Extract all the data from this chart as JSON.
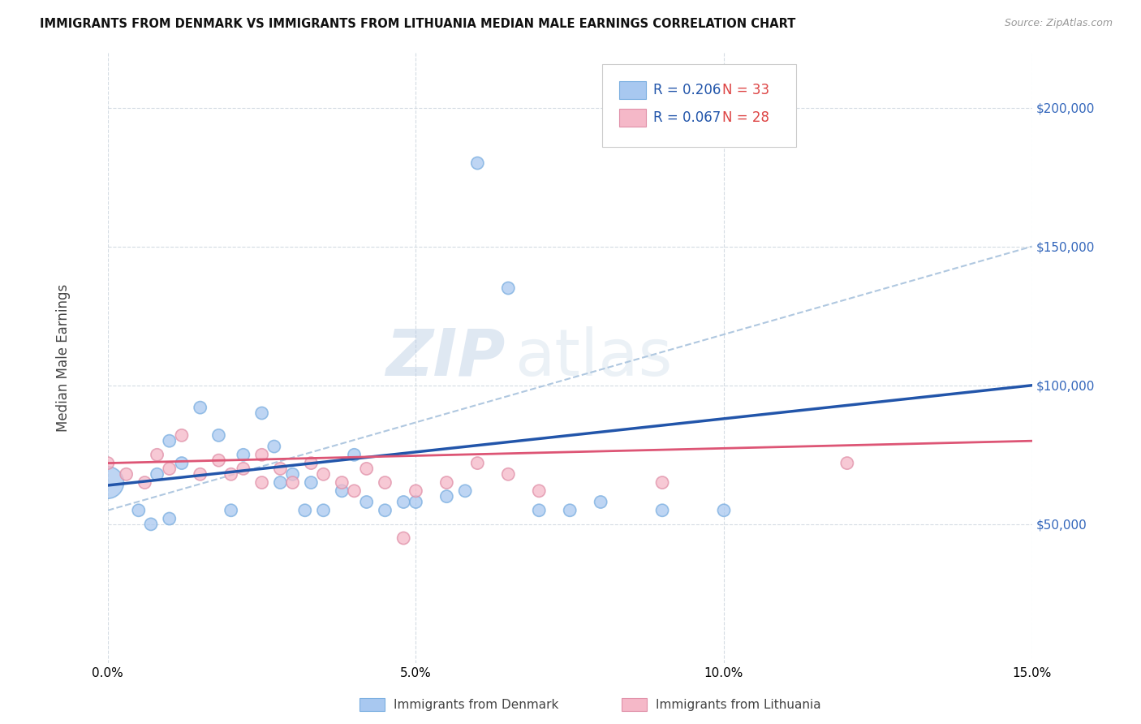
{
  "title": "IMMIGRANTS FROM DENMARK VS IMMIGRANTS FROM LITHUANIA MEDIAN MALE EARNINGS CORRELATION CHART",
  "source": "Source: ZipAtlas.com",
  "ylabel": "Median Male Earnings",
  "xlim": [
    0.0,
    0.15
  ],
  "ylim": [
    0,
    220000
  ],
  "yticks": [
    50000,
    100000,
    150000,
    200000
  ],
  "ytick_labels": [
    "$50,000",
    "$100,000",
    "$150,000",
    "$200,000"
  ],
  "xticks": [
    0.0,
    0.05,
    0.1,
    0.15
  ],
  "xtick_labels": [
    "0.0%",
    "",
    "",
    "15.0%"
  ],
  "r_denmark": 0.206,
  "n_denmark": 33,
  "r_lithuania": 0.067,
  "n_lithuania": 28,
  "denmark_color": "#a8c8f0",
  "denmark_edge_color": "#7aaee0",
  "lithuania_color": "#f5b8c8",
  "lithuania_edge_color": "#e090a8",
  "denmark_line_color": "#2255aa",
  "lithuania_line_color": "#e0607080",
  "dashed_line_color": "#b0c8e0",
  "denmark_x": [
    0.0,
    0.005,
    0.007,
    0.008,
    0.01,
    0.01,
    0.012,
    0.015,
    0.018,
    0.02,
    0.022,
    0.025,
    0.027,
    0.028,
    0.03,
    0.032,
    0.033,
    0.035,
    0.038,
    0.04,
    0.042,
    0.045,
    0.048,
    0.05,
    0.055,
    0.058,
    0.06,
    0.065,
    0.07,
    0.075,
    0.08,
    0.09,
    0.1
  ],
  "denmark_y": [
    65000,
    55000,
    50000,
    68000,
    52000,
    80000,
    72000,
    92000,
    82000,
    55000,
    75000,
    90000,
    78000,
    65000,
    68000,
    55000,
    65000,
    55000,
    62000,
    75000,
    58000,
    55000,
    58000,
    58000,
    60000,
    62000,
    180000,
    135000,
    55000,
    55000,
    58000,
    55000,
    55000
  ],
  "denmark_size_raw": [
    800,
    120,
    120,
    120,
    120,
    120,
    120,
    120,
    120,
    120,
    120,
    120,
    120,
    120,
    120,
    120,
    120,
    120,
    120,
    120,
    120,
    120,
    120,
    120,
    120,
    120,
    120,
    120,
    120,
    120,
    120,
    120,
    120
  ],
  "lithuania_x": [
    0.0,
    0.003,
    0.006,
    0.008,
    0.01,
    0.012,
    0.015,
    0.018,
    0.02,
    0.022,
    0.025,
    0.025,
    0.028,
    0.03,
    0.033,
    0.035,
    0.038,
    0.04,
    0.042,
    0.045,
    0.048,
    0.05,
    0.055,
    0.06,
    0.065,
    0.07,
    0.09,
    0.12
  ],
  "lithuania_y": [
    72000,
    68000,
    65000,
    75000,
    70000,
    82000,
    68000,
    73000,
    68000,
    70000,
    65000,
    75000,
    70000,
    65000,
    72000,
    68000,
    65000,
    62000,
    70000,
    65000,
    45000,
    62000,
    65000,
    72000,
    68000,
    62000,
    65000,
    72000
  ],
  "lithuania_size_raw": [
    120,
    120,
    120,
    120,
    120,
    120,
    120,
    120,
    120,
    120,
    120,
    120,
    120,
    120,
    120,
    120,
    120,
    120,
    120,
    120,
    120,
    120,
    120,
    120,
    120,
    120,
    120,
    120
  ],
  "blue_line_x0": 0.0,
  "blue_line_y0": 64000,
  "blue_line_x1": 0.15,
  "blue_line_y1": 100000,
  "pink_line_x0": 0.0,
  "pink_line_y0": 72000,
  "pink_line_x1": 0.15,
  "pink_line_y1": 80000,
  "dash_line_x0": 0.0,
  "dash_line_y0": 55000,
  "dash_line_x1": 0.15,
  "dash_line_y1": 150000,
  "watermark_zip": "ZIP",
  "watermark_atlas": "atlas",
  "background_color": "#ffffff",
  "grid_color": "#d0d8e0",
  "legend_r_color": "#2255aa",
  "legend_n_color": "#dd4444"
}
